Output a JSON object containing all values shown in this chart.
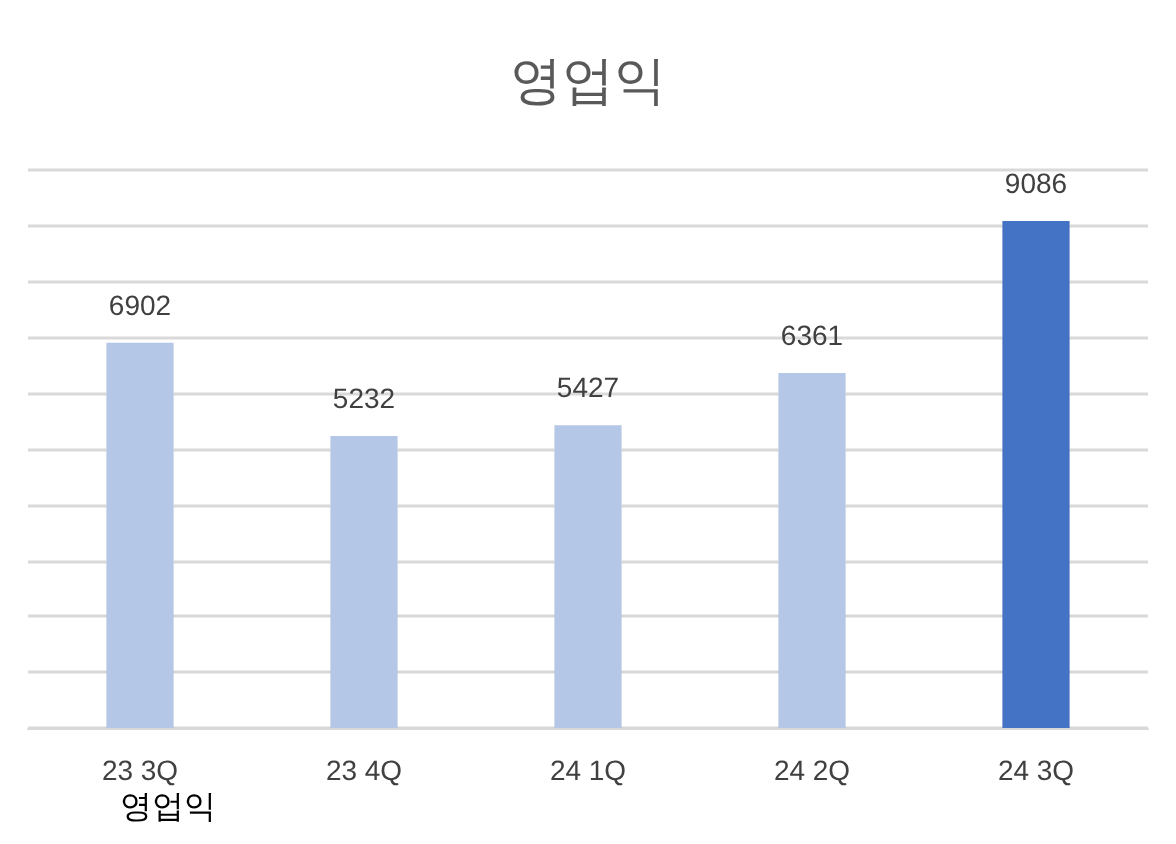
{
  "chart_data": {
    "type": "bar",
    "title": "영업익",
    "categories": [
      "23 3Q",
      "23 4Q",
      "24 1Q",
      "24 2Q",
      "24 3Q"
    ],
    "values": [
      6902,
      5232,
      5427,
      6361,
      9086
    ],
    "colors": [
      "#b4c7e7",
      "#b4c7e7",
      "#b4c7e7",
      "#b4c7e7",
      "#4472c4"
    ],
    "ylim": [
      0,
      10000
    ],
    "yticks": [
      0,
      1000,
      2000,
      3000,
      4000,
      5000,
      6000,
      7000,
      8000,
      9000,
      10000
    ],
    "tick_labels": "x",
    "grid": "y",
    "data_labels": true,
    "annotations": [
      "영업익"
    ]
  }
}
